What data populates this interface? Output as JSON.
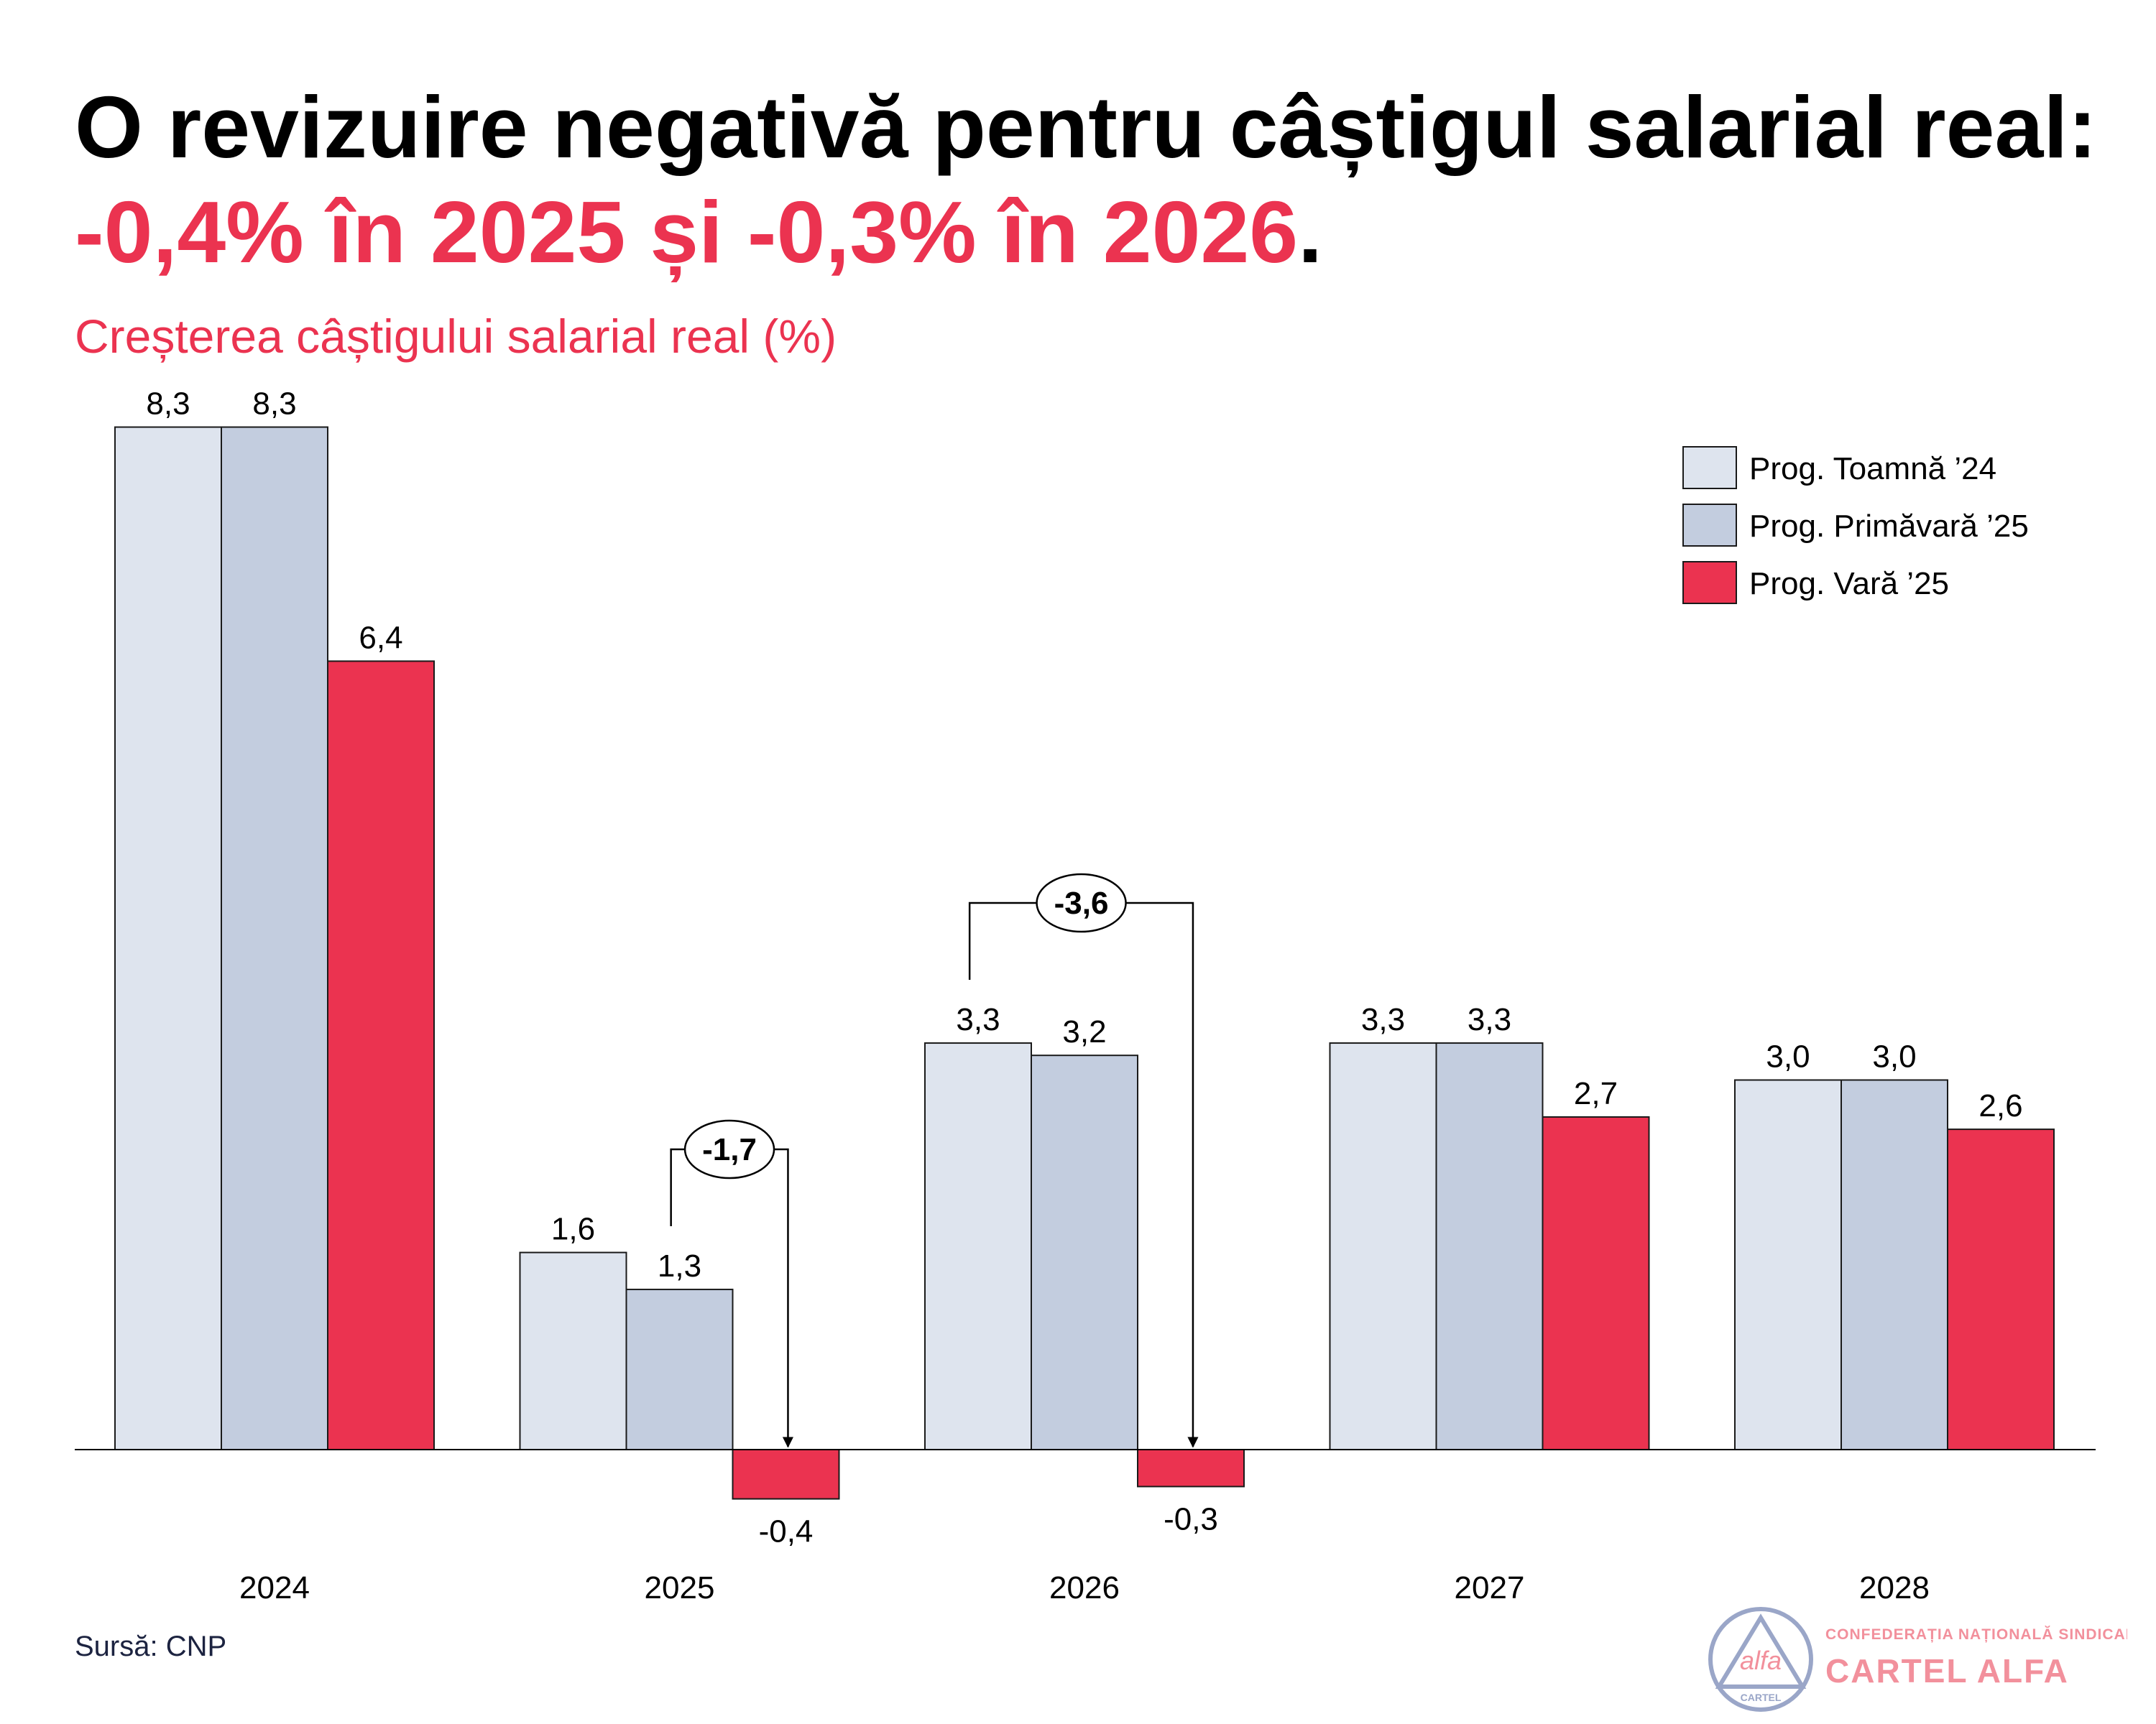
{
  "title": {
    "part1": "O revizuire negativă pentru câștigul salarial real: ",
    "highlight": "-0,4% în 2025 și -0,3% în 2026",
    "part2": "."
  },
  "subtitle": "Creșterea câștigului salarial real (%)",
  "source": "Sursă: CNP",
  "logo": {
    "org_line": "CONFEDERAȚIA NAȚIONALĂ SINDICALĂ",
    "name": "CARTEL ALFA",
    "emblem_word": "alfa",
    "emblem_small": "CARTEL"
  },
  "colors": {
    "accent": "#EB3350",
    "series": [
      "#DEE4EE",
      "#C3CDDF",
      "#EB3350"
    ],
    "stroke": "#1A1A1A"
  },
  "chart_data": {
    "type": "bar",
    "title": "Creșterea câștigului salarial real (%)",
    "xlabel": "",
    "ylabel": "",
    "categories": [
      "2024",
      "2025",
      "2026",
      "2027",
      "2028"
    ],
    "series": [
      {
        "name": "Prog. Toamnă ’24",
        "values": [
          8.3,
          1.6,
          3.3,
          3.3,
          3.0
        ],
        "labels": [
          "8,3",
          "1,6",
          "3,3",
          "3,3",
          "3,0"
        ]
      },
      {
        "name": "Prog. Primăvară ’25",
        "values": [
          8.3,
          1.3,
          3.2,
          3.3,
          3.0
        ],
        "labels": [
          "8,3",
          "1,3",
          "3,2",
          "3,3",
          "3,0"
        ]
      },
      {
        "name": "Prog. Vară ’25",
        "values": [
          6.4,
          -0.4,
          -0.3,
          2.7,
          2.6
        ],
        "labels": [
          "6,4",
          "-0,4",
          "-0,3",
          "2,7",
          "2,6"
        ]
      }
    ],
    "annotations": [
      {
        "category": "2025",
        "from_series": 1,
        "to_series": 2,
        "label": "-1,7"
      },
      {
        "category": "2026",
        "from_series": 0,
        "to_series": 2,
        "label": "-3,6"
      }
    ],
    "legend_position": "top-right",
    "grid": false
  }
}
